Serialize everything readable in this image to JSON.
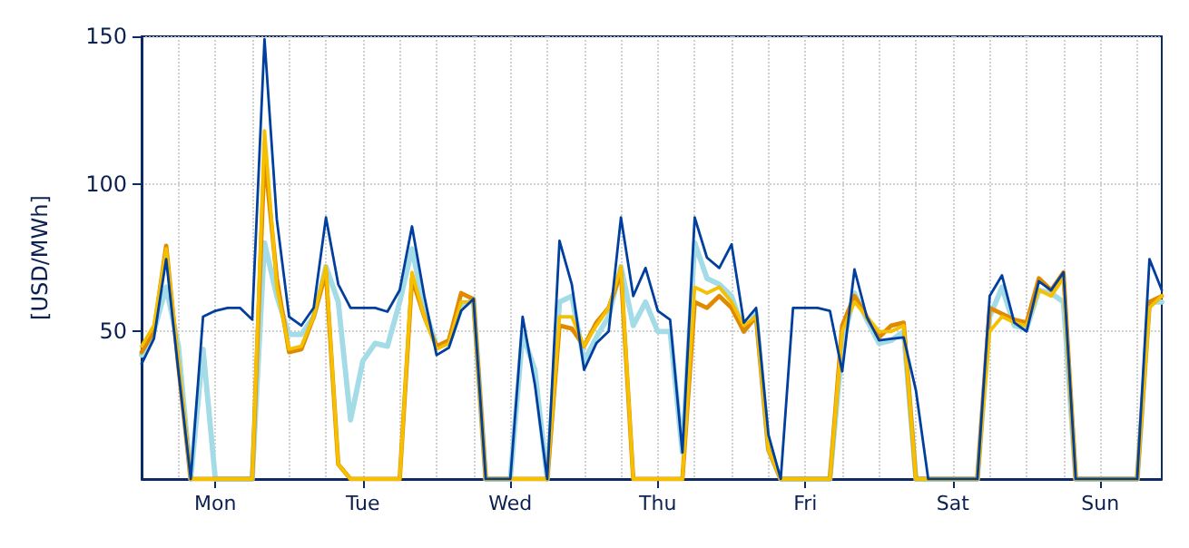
{
  "chart_data": {
    "type": "line",
    "ylabel": "[USD/MWh]",
    "ylim": [
      0,
      150
    ],
    "yticks": [
      50,
      100,
      150
    ],
    "categories": [
      null,
      null,
      null,
      null,
      null,
      null,
      "Mon",
      null,
      null,
      null,
      null,
      null,
      null,
      null,
      null,
      null,
      null,
      null,
      "Tue",
      null,
      null,
      null,
      null,
      null,
      null,
      null,
      null,
      null,
      null,
      null,
      "Wed",
      null,
      null,
      null,
      null,
      null,
      null,
      null,
      null,
      null,
      null,
      null,
      "Thu",
      null,
      null,
      null,
      null,
      null,
      null,
      null,
      null,
      null,
      null,
      null,
      "Fri",
      null,
      null,
      null,
      null,
      null,
      null,
      null,
      null,
      null,
      null,
      null,
      "Sat",
      null,
      null,
      null,
      null,
      null,
      null,
      null,
      null,
      null,
      null,
      null,
      "Sun",
      null,
      null,
      null,
      null,
      null
    ],
    "grid": true,
    "marker": "none",
    "line_style": "solid",
    "series": [
      {
        "color": "#a3dbe6",
        "values": [
          42,
          50,
          65,
          45,
          0,
          44,
          0,
          0,
          0,
          0,
          80,
          62,
          49,
          49,
          55,
          72,
          60,
          20,
          40,
          46,
          45,
          60,
          78,
          58,
          45,
          46,
          58,
          61,
          0,
          0,
          0,
          49,
          37,
          0,
          60,
          62,
          40,
          48,
          55,
          72,
          52,
          60,
          50,
          50,
          9,
          80,
          68,
          66,
          62,
          50,
          56,
          10,
          0,
          0,
          0,
          0,
          0,
          45,
          63,
          54,
          46,
          47,
          50,
          0,
          0,
          0,
          0,
          0,
          0,
          55,
          65,
          52,
          51,
          64,
          63,
          60,
          0,
          0,
          0,
          0,
          0,
          0,
          60,
          60
        ]
      },
      {
        "color": "#e08a00",
        "values": [
          43,
          50,
          79,
          38,
          0,
          0,
          0,
          0,
          0,
          0,
          110,
          68,
          43,
          44,
          55,
          70,
          5,
          0,
          0,
          0,
          0,
          0,
          68,
          55,
          45,
          47,
          63,
          61,
          0,
          0,
          0,
          0,
          0,
          0,
          52,
          51,
          45,
          53,
          58,
          70,
          0,
          0,
          0,
          0,
          0,
          60,
          58,
          62,
          58,
          50,
          55,
          10,
          0,
          0,
          0,
          0,
          0,
          52,
          62,
          55,
          48,
          52,
          53,
          0,
          0,
          0,
          0,
          0,
          0,
          58,
          56,
          54,
          53,
          68,
          64,
          70,
          0,
          0,
          0,
          0,
          0,
          0,
          60,
          62
        ]
      },
      {
        "color": "#f5c000",
        "values": [
          45,
          52,
          78,
          40,
          0,
          0,
          0,
          0,
          0,
          0,
          118,
          65,
          44,
          45,
          55,
          72,
          5,
          0,
          0,
          0,
          0,
          0,
          70,
          55,
          44,
          46,
          60,
          60,
          0,
          0,
          0,
          0,
          0,
          0,
          55,
          55,
          45,
          52,
          58,
          72,
          0,
          0,
          0,
          0,
          0,
          65,
          63,
          65,
          60,
          52,
          55,
          10,
          0,
          0,
          0,
          0,
          0,
          50,
          60,
          55,
          50,
          50,
          52,
          0,
          0,
          0,
          0,
          0,
          0,
          50,
          55,
          53,
          52,
          64,
          62,
          68,
          0,
          0,
          0,
          0,
          0,
          0,
          58,
          62
        ]
      },
      {
        "color": "#003f9e",
        "values": [
          39,
          47.5,
          74.5,
          36.5,
          0,
          55,
          57,
          58,
          58,
          54,
          149,
          88,
          55,
          52,
          58,
          88.6,
          66,
          58,
          58,
          58,
          56.7,
          64,
          85.6,
          62,
          42,
          44.5,
          57,
          61,
          0,
          0,
          0,
          55,
          32,
          0,
          80.7,
          66,
          37,
          46,
          50,
          88.6,
          62,
          71.5,
          57,
          54,
          9,
          88.6,
          75,
          71.5,
          79.5,
          53,
          58,
          15,
          0,
          58,
          58,
          58,
          57,
          36.5,
          71,
          55,
          47,
          47.5,
          48,
          30,
          0,
          0,
          0,
          0,
          0,
          62,
          69,
          53,
          50,
          67,
          64,
          70,
          0,
          0,
          0,
          0,
          0,
          0,
          74.5,
          64
        ]
      }
    ]
  }
}
